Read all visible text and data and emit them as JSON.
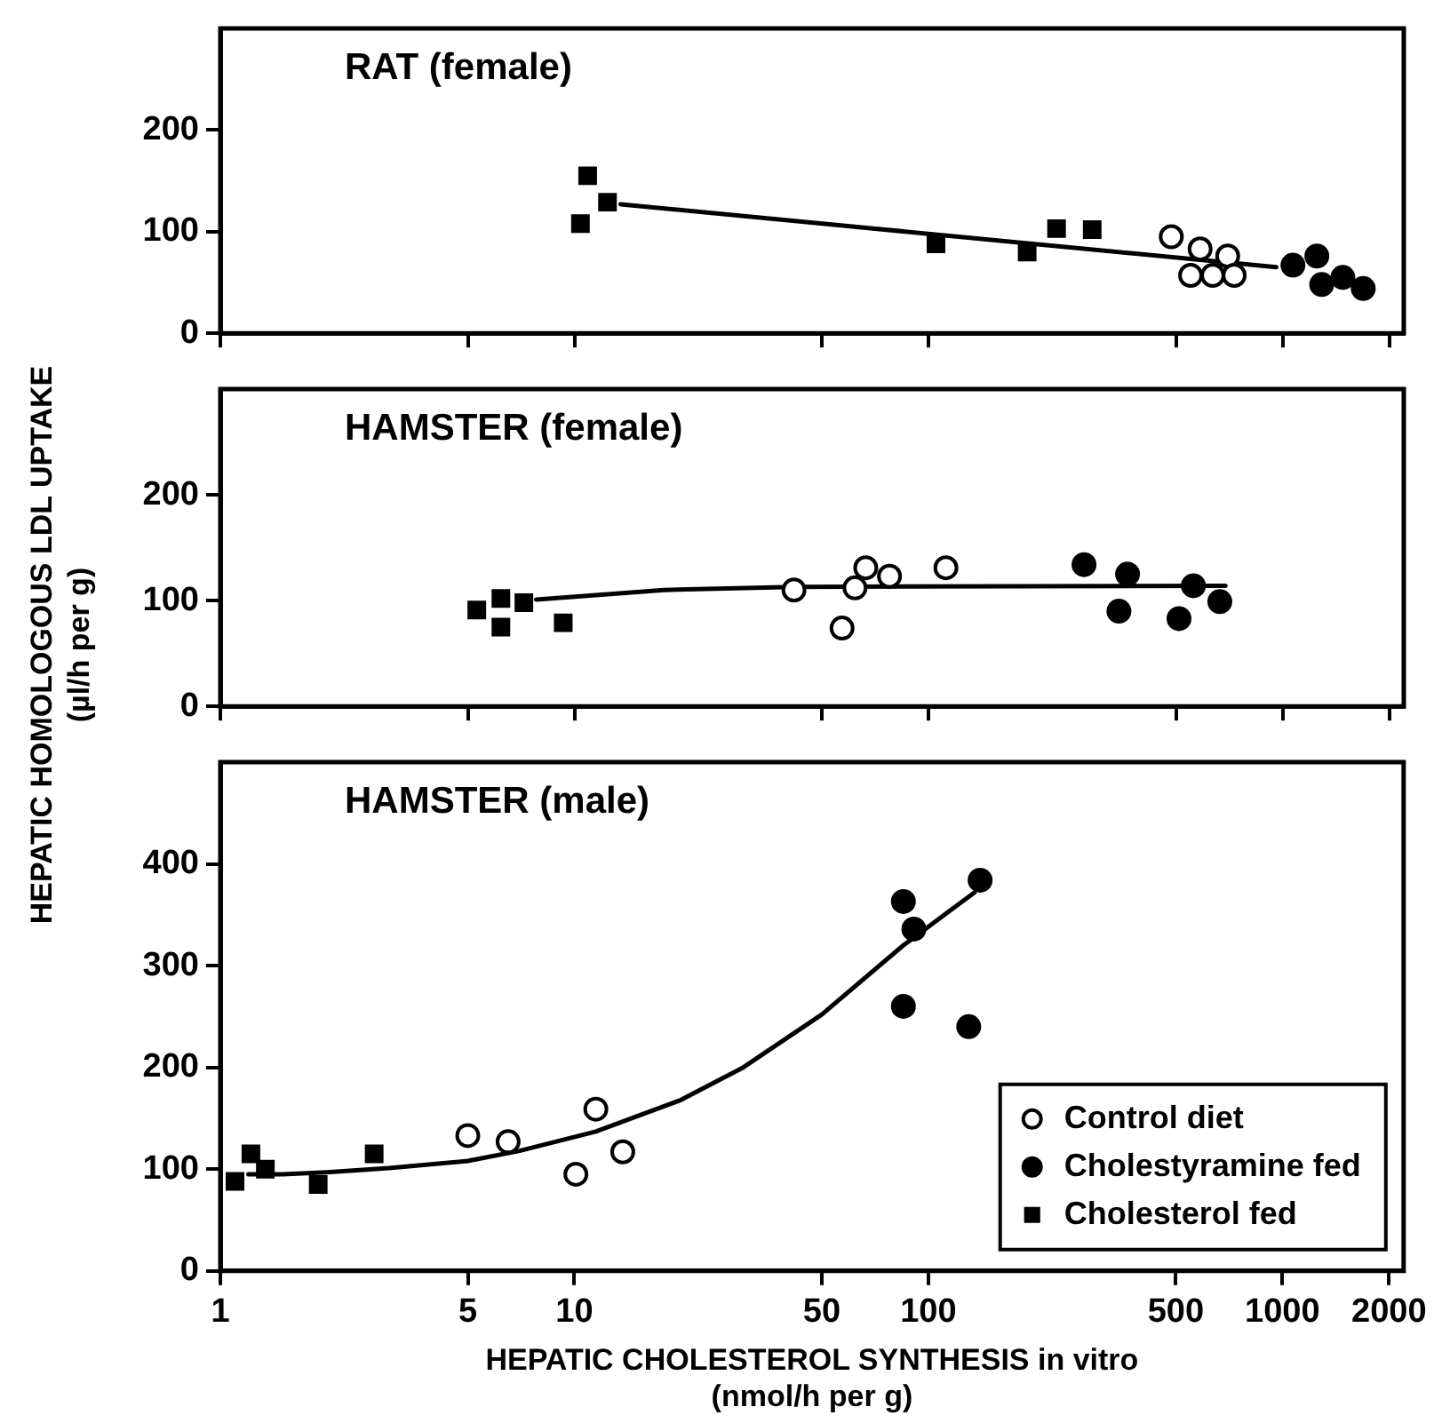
{
  "chart_data": [
    {
      "type": "scatter",
      "title": "RAT (female)",
      "log": "x",
      "xlim": [
        1,
        2200
      ],
      "xticks": [
        1,
        5,
        10,
        50,
        100,
        500,
        1000,
        2000
      ],
      "ylim": [
        0,
        300
      ],
      "yticks": [
        0,
        100,
        200
      ],
      "tick_labels": "y",
      "series": [
        {
          "type": "scatter",
          "marker": "circle",
          "color": "#ffffff",
          "x": [
            485,
            585,
            700,
            550,
            635,
            730
          ],
          "values": [
            95,
            83,
            76,
            57,
            57,
            57
          ]
        },
        {
          "type": "scatter",
          "marker": "circle",
          "color": "#000000",
          "x": [
            1070,
            1250,
            1290,
            1480,
            1690
          ],
          "values": [
            67,
            76,
            48,
            55,
            44
          ]
        },
        {
          "type": "scatter",
          "marker": "square",
          "color": "#000000",
          "x": [
            10.4,
            10.9,
            12.4,
            105,
            190,
            230,
            290
          ],
          "values": [
            108,
            155,
            129,
            88,
            80,
            103,
            102
          ]
        },
        {
          "type": "line",
          "marker": "none",
          "color": "#000000",
          "x": [
            13.5,
            960
          ],
          "values": [
            127,
            65
          ]
        }
      ]
    },
    {
      "type": "scatter",
      "title": "HAMSTER (female)",
      "ylabel": "HEPATIC HOMOLOGOUS LDL UPTAKE\n(µl/h per g)",
      "log": "x",
      "xlim": [
        1,
        2200
      ],
      "xticks": [
        1,
        5,
        10,
        50,
        100,
        500,
        1000,
        2000
      ],
      "ylim": [
        0,
        300
      ],
      "yticks": [
        0,
        100,
        200
      ],
      "tick_labels": "y",
      "series": [
        {
          "type": "scatter",
          "marker": "circle",
          "color": "#ffffff",
          "x": [
            41.7,
            57,
            62,
            66.5,
            77.6,
            112
          ],
          "values": [
            110,
            74,
            112,
            131,
            123,
            131
          ]
        },
        {
          "type": "scatter",
          "marker": "circle",
          "color": "#000000",
          "x": [
            275,
            365,
            345,
            510,
            560,
            665
          ],
          "values": [
            134,
            125,
            90,
            83,
            114,
            99
          ]
        },
        {
          "type": "scatter",
          "marker": "square",
          "color": "#000000",
          "x": [
            5.3,
            6.2,
            6.2,
            7.2,
            9.3
          ],
          "values": [
            91,
            102,
            75,
            98,
            79
          ]
        },
        {
          "type": "line",
          "marker": "none",
          "color": "#000000",
          "x": [
            7.8,
            17.9,
            41.7,
            690
          ],
          "values": [
            101,
            110,
            113,
            114
          ]
        }
      ]
    },
    {
      "type": "scatter",
      "title": "HAMSTER (male)",
      "xlabel": "HEPATIC CHOLESTEROL SYNTHESIS in vitro\n(nmol/h per g)",
      "log": "x",
      "xlim": [
        1,
        2200
      ],
      "xticks": [
        1,
        5,
        10,
        50,
        100,
        500,
        1000,
        2000
      ],
      "ylim": [
        0,
        500
      ],
      "yticks": [
        0,
        100,
        200,
        300,
        400
      ],
      "legend": "bottom right",
      "series": [
        {
          "name": "Control diet",
          "type": "scatter",
          "marker": "circle",
          "color": "#ffffff",
          "x": [
            5.0,
            6.5,
            10.1,
            13.7,
            11.5
          ],
          "values": [
            133,
            127,
            95,
            117,
            159
          ]
        },
        {
          "name": "Cholestyramine fed",
          "type": "scatter",
          "marker": "circle",
          "color": "#000000",
          "x": [
            85,
            91,
            140,
            85,
            130
          ],
          "values": [
            363,
            336,
            384,
            260,
            240
          ]
        },
        {
          "name": "Cholesterol fed",
          "type": "scatter",
          "marker": "square",
          "color": "#000000",
          "x": [
            1.1,
            1.22,
            1.34,
            1.89,
            2.72
          ],
          "values": [
            88,
            115,
            100,
            85,
            115
          ]
        },
        {
          "type": "line",
          "marker": "none",
          "color": "#000000",
          "x": [
            1.2,
            1.5,
            2,
            3,
            5,
            7,
            11.5,
            20,
            30,
            50,
            85,
            135
          ],
          "values": [
            95,
            95,
            97,
            101,
            108,
            118,
            137,
            168,
            200,
            252,
            320,
            372
          ]
        }
      ]
    }
  ]
}
